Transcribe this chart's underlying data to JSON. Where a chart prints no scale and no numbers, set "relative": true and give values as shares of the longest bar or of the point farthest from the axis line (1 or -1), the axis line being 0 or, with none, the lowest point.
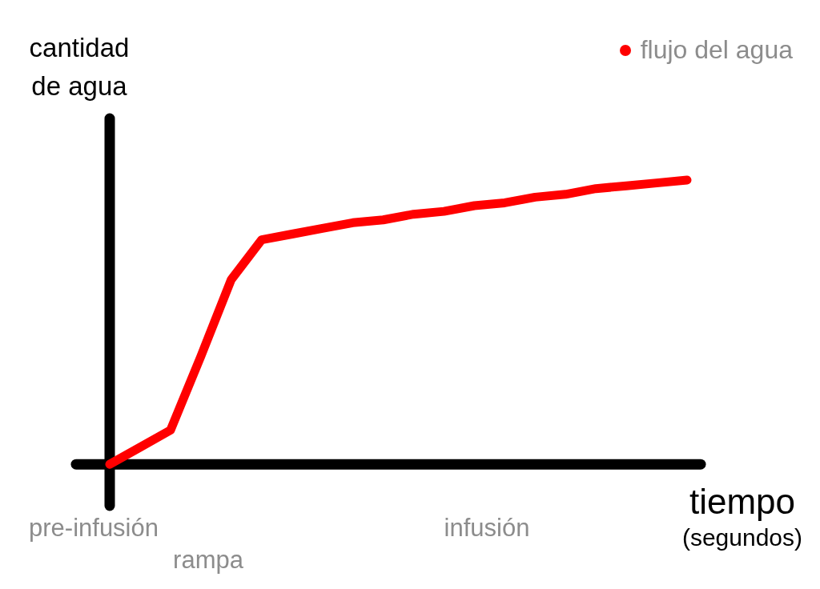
{
  "chart_data": {
    "type": "line",
    "relative": true,
    "xlabel": "tiempo (segundos)",
    "ylabel": "cantidad de agua",
    "legend": "top right",
    "marker": "none",
    "line_style": "solid",
    "categories": [
      null,
      null,
      null,
      null,
      null,
      null,
      null,
      null,
      null,
      null,
      null,
      null,
      null,
      null,
      null,
      null,
      null,
      null,
      null,
      null
    ],
    "series": [
      {
        "name": "flujo del agua",
        "color": "#ff0000",
        "values": [
          0,
          0.06,
          0.12,
          0.38,
          0.65,
          0.79,
          0.81,
          0.83,
          0.85,
          0.86,
          0.88,
          0.89,
          0.91,
          0.92,
          0.94,
          0.95,
          0.97,
          0.98,
          0.99,
          1
        ]
      }
    ],
    "annotations": [
      "pre-infusión",
      "rampa",
      "infusión"
    ]
  }
}
